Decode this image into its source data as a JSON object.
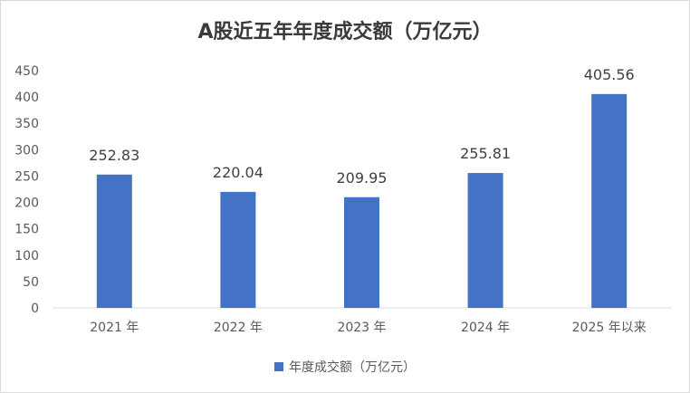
{
  "chart_data": {
    "type": "bar",
    "title": "A股近五年年度成交额（万亿元）",
    "categories": [
      "2021 年",
      "2022 年",
      "2023 年",
      "2024 年",
      "2025 年以来"
    ],
    "series": [
      {
        "name": "年度成交额（万亿元）",
        "values": [
          252.83,
          220.04,
          209.95,
          255.81,
          405.56
        ],
        "color": "#4472c4"
      }
    ],
    "data_labels": [
      "252.83",
      "220.04",
      "209.95",
      "255.81",
      "405.56"
    ],
    "ylim": [
      0,
      450
    ],
    "yticks": [
      0,
      50,
      100,
      150,
      200,
      250,
      300,
      350,
      400,
      450
    ],
    "grid": false,
    "legend_position": "bottom"
  }
}
